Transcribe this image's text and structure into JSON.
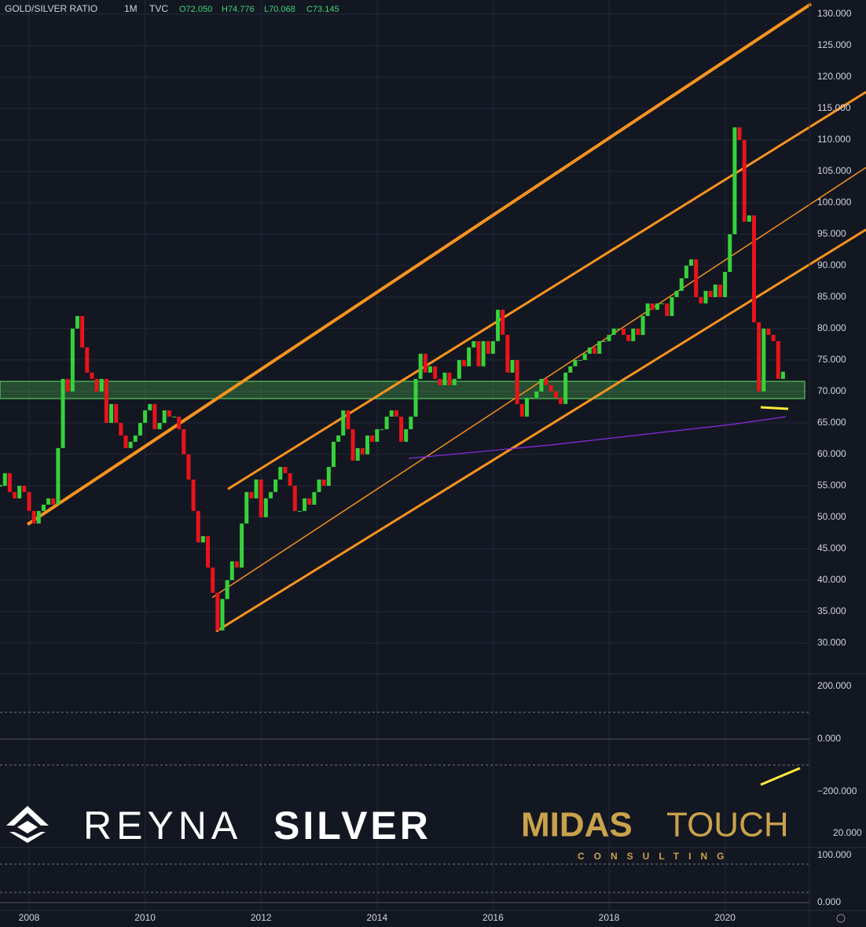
{
  "chart_data": [
    {
      "type": "candlestick",
      "title": "GOLD/SILVER RATIO",
      "interval": "1M",
      "source": "TVC",
      "ohlc_labels": [
        "O72.050",
        "H74.776",
        "L70.068",
        "C73.145"
      ],
      "categories": [
        null,
        null,
        null,
        null,
        null,
        null,
        "2008",
        null,
        null,
        null,
        null,
        null,
        null,
        null,
        null,
        null,
        null,
        null,
        null,
        null,
        null,
        null,
        null,
        null,
        null,
        null,
        null,
        null,
        null,
        null,
        "2010",
        null,
        null,
        null,
        null,
        null,
        null,
        null,
        null,
        null,
        null,
        null,
        null,
        null,
        null,
        null,
        null,
        null,
        null,
        null,
        null,
        null,
        null,
        null,
        "2012",
        null,
        null,
        null,
        null,
        null,
        null,
        null,
        null,
        null,
        null,
        null,
        null,
        null,
        null,
        null,
        null,
        null,
        null,
        null,
        null,
        null,
        null,
        null,
        "2014",
        null,
        null,
        null,
        null,
        null,
        null,
        null,
        null,
        null,
        null,
        null,
        null,
        null,
        null,
        null,
        null,
        null,
        null,
        null,
        null,
        null,
        null,
        null,
        "2016",
        null,
        null,
        null,
        null,
        null,
        null,
        null,
        null,
        null,
        null,
        null,
        null,
        null,
        null,
        null,
        null,
        null,
        null,
        null,
        null,
        null,
        null,
        null,
        "2018",
        null,
        null,
        null,
        null,
        null,
        null,
        null,
        null,
        null,
        null,
        null,
        null,
        null,
        null,
        null,
        null,
        null,
        null,
        null,
        null,
        null,
        null,
        null,
        "2020",
        null,
        null,
        null,
        null,
        null,
        null,
        null,
        null,
        null,
        null,
        null,
        null
      ],
      "close": [
        55,
        57,
        54,
        53,
        55,
        54,
        51,
        49,
        51,
        52,
        53,
        52,
        61,
        72,
        70,
        80,
        82,
        77,
        73,
        72,
        70,
        72,
        65,
        68,
        65,
        63,
        61,
        62,
        63,
        65,
        67,
        68,
        64,
        65,
        67,
        66,
        66,
        64,
        60,
        56,
        51,
        46,
        47,
        42,
        38,
        32,
        37,
        40,
        43,
        42,
        49,
        54,
        53,
        56,
        50,
        53,
        54,
        56,
        58,
        57,
        55,
        51,
        51,
        53,
        52,
        54,
        56,
        55,
        58,
        62,
        63,
        67,
        64,
        59,
        61,
        60,
        63,
        62,
        64,
        64,
        66,
        67,
        66,
        62,
        64,
        66,
        72,
        76,
        73,
        74,
        72,
        71,
        73,
        71,
        72,
        75,
        74,
        77,
        78,
        74,
        78,
        76,
        78,
        83,
        79,
        73,
        75,
        68,
        66,
        69,
        69,
        70,
        72,
        71,
        70,
        69,
        68,
        73,
        74,
        75,
        75,
        76,
        77,
        76,
        78,
        78,
        79,
        80,
        80,
        79,
        78,
        80,
        79,
        82,
        84,
        83,
        84,
        84,
        82,
        85,
        86,
        88,
        90,
        91,
        85,
        84,
        86,
        85,
        87,
        85,
        89,
        95,
        112,
        110,
        97,
        98,
        81,
        70,
        80,
        79,
        78,
        72,
        73.145
      ],
      "up_color": "#36d23a",
      "down_color": "#e8141a",
      "ylim": [
        25.1,
        132.25
      ],
      "yticks": [
        {
          "value": 30,
          "label": "30.000"
        },
        {
          "value": 35,
          "label": "35.000"
        },
        {
          "value": 40,
          "label": "40.000"
        },
        {
          "value": 45,
          "label": "45.000"
        },
        {
          "value": 50,
          "label": "50.000"
        },
        {
          "value": 55,
          "label": "55.000"
        },
        {
          "value": 60,
          "label": "60.000"
        },
        {
          "value": 65,
          "label": "65.000"
        },
        {
          "value": 70,
          "label": "70.000"
        },
        {
          "value": 75,
          "label": "75.000"
        },
        {
          "value": 80,
          "label": "80.000"
        },
        {
          "value": 85,
          "label": "85.000"
        },
        {
          "value": 90,
          "label": "90.000"
        },
        {
          "value": 95,
          "label": "95.000"
        },
        {
          "value": 100,
          "label": "100.000"
        },
        {
          "value": 105,
          "label": "105.000"
        },
        {
          "value": 110,
          "label": "110.000"
        },
        {
          "value": 115,
          "label": "115.000"
        },
        {
          "value": 120,
          "label": "120.000"
        },
        {
          "value": 125,
          "label": "125.000"
        },
        {
          "value": 130,
          "label": "130.000"
        }
      ],
      "grid": true
    },
    {
      "type": "oscillator",
      "ylim": [
        -412,
        247.8
      ],
      "yticks": [
        {
          "value": 200,
          "label": "200.000"
        },
        {
          "value": 0,
          "label": "0.000"
        },
        {
          "value": -200,
          "label": "−200.000"
        }
      ],
      "scale_label": "20.000"
    },
    {
      "type": "oscillator",
      "ylim": [
        -16.7,
        116.7
      ],
      "yticks": [
        {
          "value": 100,
          "label": "100.000"
        },
        {
          "value": 0,
          "label": "0.000"
        }
      ]
    }
  ],
  "logos": {
    "left_light": "REYNA",
    "left_bold": "SILVER",
    "right_bold": "MIDAS",
    "right_light": "TOUCH",
    "right_sub": "CONSULTING"
  }
}
